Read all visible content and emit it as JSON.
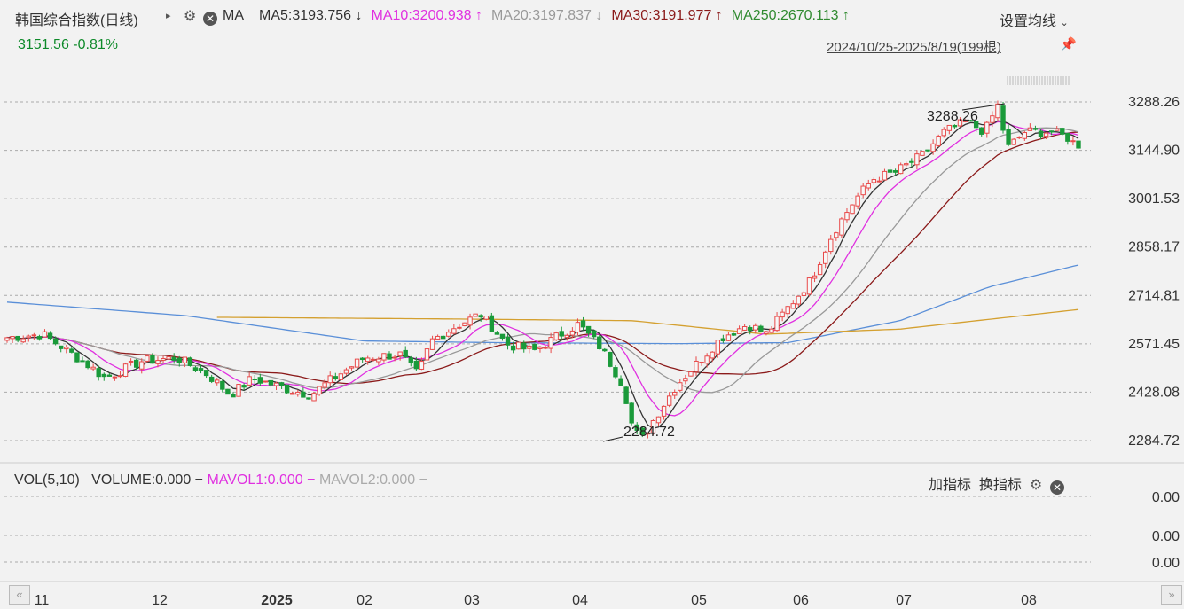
{
  "header": {
    "title": "韩国综合指数(日线)",
    "ma_label": "MA",
    "ma_items": [
      {
        "text": "MA5:3193.756",
        "arrow": "↓",
        "color": "#333333"
      },
      {
        "text": "MA10:3200.938",
        "arrow": "↑",
        "color": "#e030e0"
      },
      {
        "text": "MA20:3197.837",
        "arrow": "↓",
        "color": "#999999"
      },
      {
        "text": "MA30:3191.977",
        "arrow": "↑",
        "color": "#8b1a1a"
      },
      {
        "text": "MA250:2670.113",
        "arrow": "↑",
        "color": "#2f8a2f"
      }
    ],
    "price_line": "3151.56 -0.81%",
    "settings_label": "设置均线",
    "date_range": "2024/10/25-2025/8/19(199根)"
  },
  "volume_panel": {
    "vol_label": "VOL(5,10)",
    "volume_text": "VOLUME:0.000",
    "mavol1_text": "MAVOL1:0.000",
    "mavol2_text": "MAVOL2:0.000",
    "add_indicator": "加指标",
    "switch_indicator": "换指标",
    "y_ticks": [
      "0.00",
      "0.00",
      "0.00"
    ]
  },
  "colors": {
    "up": "#e84a4a",
    "down": "#1a9a3a",
    "ma5": "#333333",
    "ma10": "#e030e0",
    "ma20": "#999999",
    "ma30": "#8b1a1a",
    "ma120": "#5a8fd8",
    "ma250": "#d4a030"
  },
  "chart_data": {
    "type": "candlestick",
    "y_ticks": [
      "3288.26",
      "3144.90",
      "3001.53",
      "2858.17",
      "2714.81",
      "2571.45",
      "2428.08",
      "2284.72"
    ],
    "ylim": [
      2284.72,
      3288.26
    ],
    "x_ticks": [
      "11",
      "12",
      "2025",
      "02",
      "03",
      "04",
      "05",
      "06",
      "07",
      "08"
    ],
    "annotations": {
      "high": "3288.26",
      "low": "2284.72"
    },
    "close_path": [
      [
        0,
        2590
      ],
      [
        8,
        2600
      ],
      [
        18,
        2510
      ],
      [
        22,
        2470
      ],
      [
        30,
        2520
      ],
      [
        38,
        2530
      ],
      [
        45,
        2480
      ],
      [
        50,
        2420
      ],
      [
        55,
        2470
      ],
      [
        62,
        2440
      ],
      [
        68,
        2420
      ],
      [
        72,
        2460
      ],
      [
        80,
        2530
      ],
      [
        88,
        2540
      ],
      [
        92,
        2480
      ],
      [
        95,
        2580
      ],
      [
        100,
        2620
      ],
      [
        106,
        2660
      ],
      [
        112,
        2570
      ],
      [
        118,
        2550
      ],
      [
        124,
        2600
      ],
      [
        128,
        2630
      ],
      [
        133,
        2560
      ],
      [
        138,
        2450
      ],
      [
        140,
        2330
      ],
      [
        142,
        2285
      ],
      [
        145,
        2350
      ],
      [
        150,
        2450
      ],
      [
        155,
        2520
      ],
      [
        160,
        2590
      ],
      [
        166,
        2630
      ],
      [
        170,
        2600
      ],
      [
        175,
        2680
      ],
      [
        180,
        2760
      ],
      [
        185,
        2900
      ],
      [
        190,
        3000
      ],
      [
        194,
        3060
      ],
      [
        199,
        3080
      ],
      [
        205,
        3130
      ],
      [
        210,
        3200
      ],
      [
        215,
        3230
      ],
      [
        219,
        3200
      ],
      [
        222,
        3280
      ],
      [
        224,
        3150
      ],
      [
        228,
        3200
      ],
      [
        234,
        3200
      ],
      [
        238,
        3180
      ],
      [
        240,
        3150
      ]
    ],
    "ma_series": [
      {
        "key": "ma10",
        "lag": 4,
        "amp": 1.0
      },
      {
        "key": "ma20",
        "lag": 9,
        "amp": 1.0
      },
      {
        "key": "ma30",
        "lag": 14,
        "amp": 1.0
      }
    ],
    "ma120_path": [
      [
        0,
        2695
      ],
      [
        40,
        2655
      ],
      [
        80,
        2580
      ],
      [
        110,
        2575
      ],
      [
        150,
        2572
      ],
      [
        175,
        2575
      ],
      [
        200,
        2640
      ],
      [
        220,
        2740
      ],
      [
        240,
        2805
      ]
    ],
    "ma250_path": [
      [
        47,
        2650
      ],
      [
        100,
        2645
      ],
      [
        140,
        2640
      ],
      [
        170,
        2600
      ],
      [
        200,
        2615
      ],
      [
        240,
        2673
      ]
    ]
  }
}
